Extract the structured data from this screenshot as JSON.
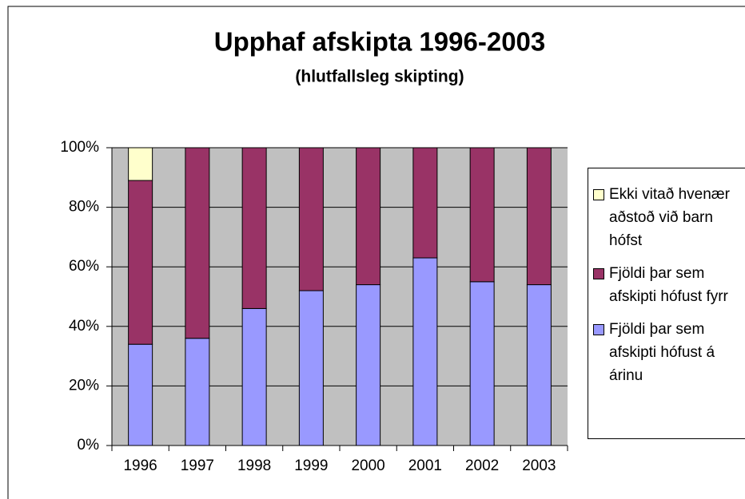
{
  "chart_data": {
    "type": "stacked_bar",
    "title": "Upphaf afskipta  1996-2003",
    "subtitle": "(hlutfallsleg skipting)",
    "categories": [
      "1996",
      "1997",
      "1998",
      "1999",
      "2000",
      "2001",
      "2002",
      "2003"
    ],
    "series": [
      {
        "name": "Fjöldi þar sem afskipti hófust á árinu",
        "color": "#9999ff",
        "values": [
          34,
          36,
          46,
          52,
          54,
          63,
          55,
          54
        ]
      },
      {
        "name": "Fjöldi þar sem afskipti hófust fyrr",
        "color": "#993366",
        "values": [
          55,
          64,
          54,
          48,
          46,
          37,
          45,
          46
        ]
      },
      {
        "name": "Ekki vitað hvenær aðstoð við barn hófst",
        "color": "#ffffcc",
        "values": [
          11,
          0,
          0,
          0,
          0,
          0,
          0,
          0
        ]
      }
    ],
    "ylim": [
      0,
      100
    ],
    "yticks": [
      {
        "value": 0,
        "label": "0%"
      },
      {
        "value": 20,
        "label": "20%"
      },
      {
        "value": 40,
        "label": "40%"
      },
      {
        "value": 60,
        "label": "60%"
      },
      {
        "value": 80,
        "label": "80%"
      },
      {
        "value": 100,
        "label": "100%"
      }
    ],
    "grid": true,
    "legend": "right"
  }
}
